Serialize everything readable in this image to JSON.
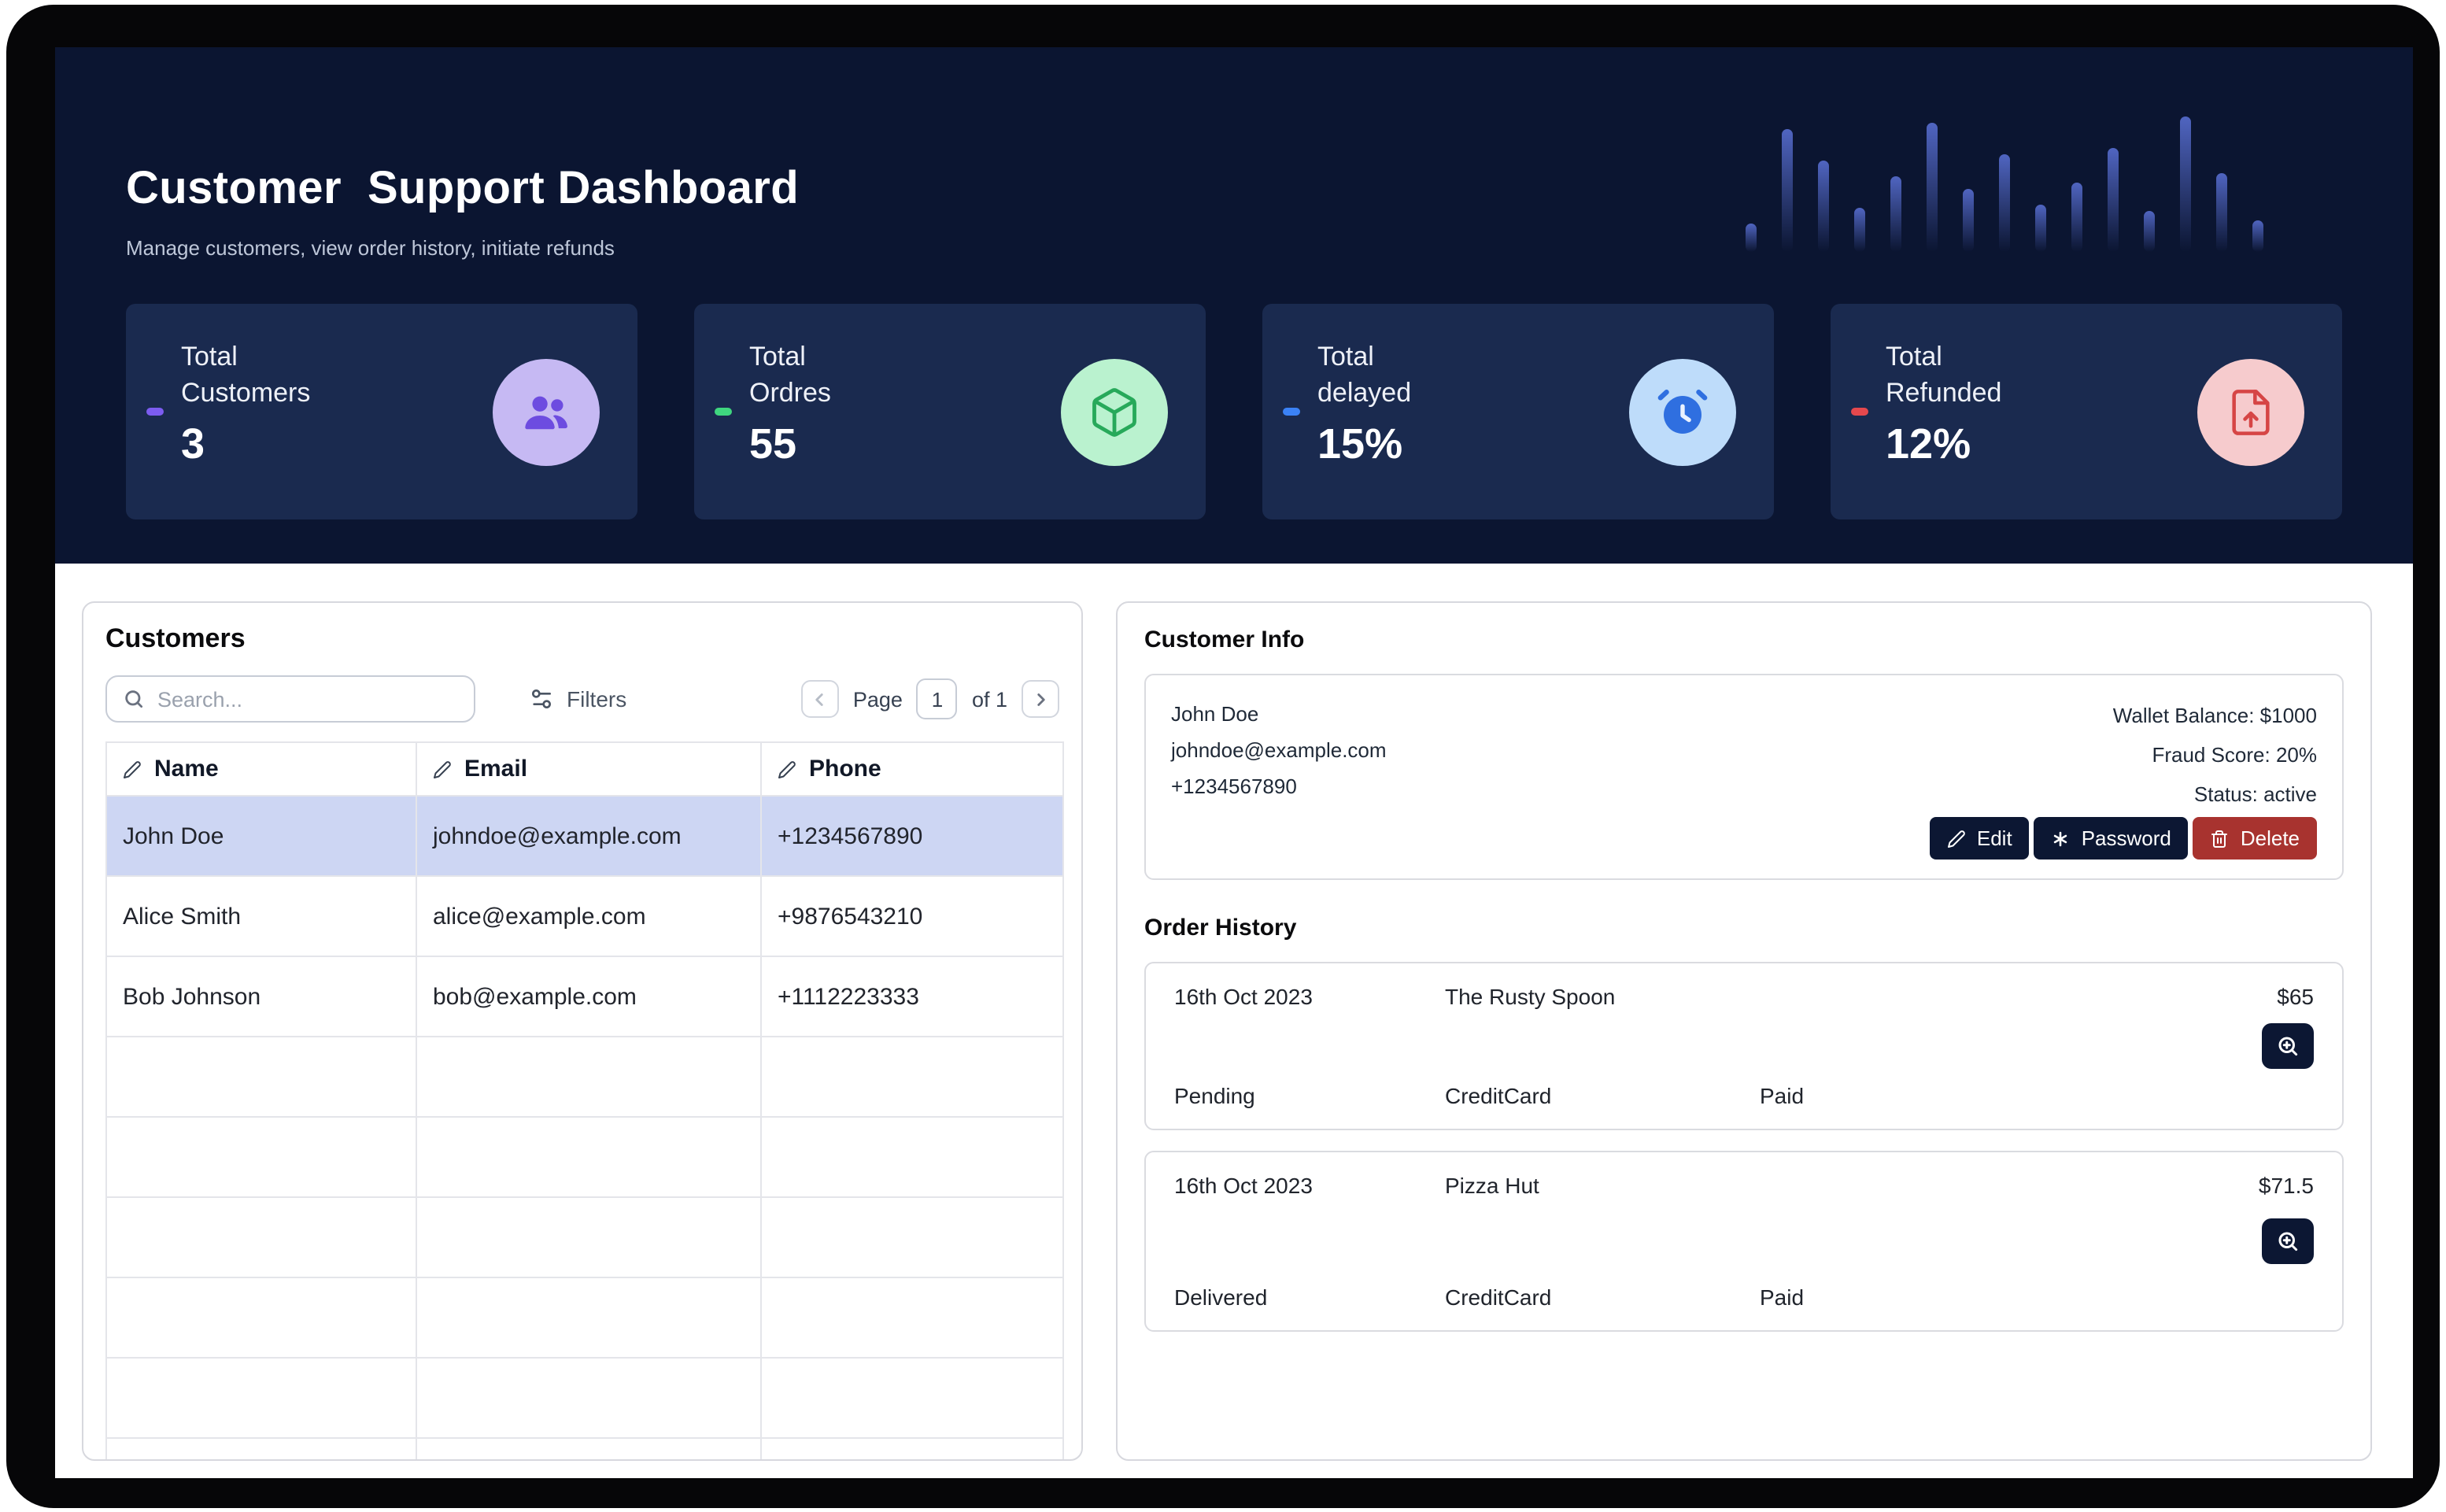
{
  "header": {
    "title": "Customer  Support Dashboard",
    "subtitle": "Manage customers, view order history, initiate refunds",
    "bg_color": "#0b1531",
    "decor_bars": [
      18,
      78,
      58,
      28,
      48,
      82,
      40,
      62,
      30,
      44,
      66,
      26,
      86,
      50,
      20
    ]
  },
  "stats": [
    {
      "label_line1": "Total",
      "label_line2": "Customers",
      "value": "3",
      "accent": "#7c5cf0",
      "icon": "users-icon",
      "icon_bg": "#c6b9f3",
      "icon_color": "#6d4ce0"
    },
    {
      "label_line1": "Total",
      "label_line2": "Ordres",
      "value": "55",
      "accent": "#3fd67f",
      "icon": "package-icon",
      "icon_bg": "#baf2cf",
      "icon_color": "#27a95a"
    },
    {
      "label_line1": "Total",
      "label_line2": "delayed",
      "value": "15%",
      "accent": "#3b82f6",
      "icon": "alarm-clock-icon",
      "icon_bg": "#bedcfa",
      "icon_color": "#2f6fe0"
    },
    {
      "label_line1": "Total",
      "label_line2": "Refunded",
      "value": "12%",
      "accent": "#e5484d",
      "icon": "file-up-icon",
      "icon_bg": "#f6cbcd",
      "icon_color": "#d64545"
    }
  ],
  "customers_panel": {
    "title": "Customers",
    "search_placeholder": "Search...",
    "filters_label": "Filters",
    "pagination": {
      "page_label": "Page",
      "page_value": "1",
      "of_label": "of 1"
    },
    "columns": [
      "Name",
      "Email",
      "Phone"
    ],
    "rows": [
      {
        "name": "John Doe",
        "email": "johndoe@example.com",
        "phone": "+1234567890",
        "selected": true
      },
      {
        "name": "Alice Smith",
        "email": "alice@example.com",
        "phone": "+9876543210",
        "selected": false
      },
      {
        "name": "Bob Johnson",
        "email": "bob@example.com",
        "phone": "+1112223333",
        "selected": false
      }
    ],
    "selected_row_color": "#cdd6f3"
  },
  "customer_info": {
    "title": "Customer Info",
    "name": "John Doe",
    "email": "johndoe@example.com",
    "phone": "+1234567890",
    "wallet": "Wallet Balance: $1000",
    "fraud": "Fraud Score: 20%",
    "status": "Status: active",
    "buttons": {
      "edit": "Edit",
      "password": "Password",
      "delete": "Delete"
    },
    "button_colors": {
      "edit": "#0c1733",
      "password": "#0c1733",
      "delete": "#a8332f"
    }
  },
  "order_history": {
    "title": "Order History",
    "orders": [
      {
        "date": "16th Oct 2023",
        "merchant": "The Rusty Spoon",
        "amount": "$65",
        "status": "Pending",
        "payment": "CreditCard",
        "paid": "Paid"
      },
      {
        "date": "16th Oct 2023",
        "merchant": "Pizza Hut",
        "amount": "$71.5",
        "status": "Delivered",
        "payment": "CreditCard",
        "paid": "Paid"
      }
    ]
  }
}
